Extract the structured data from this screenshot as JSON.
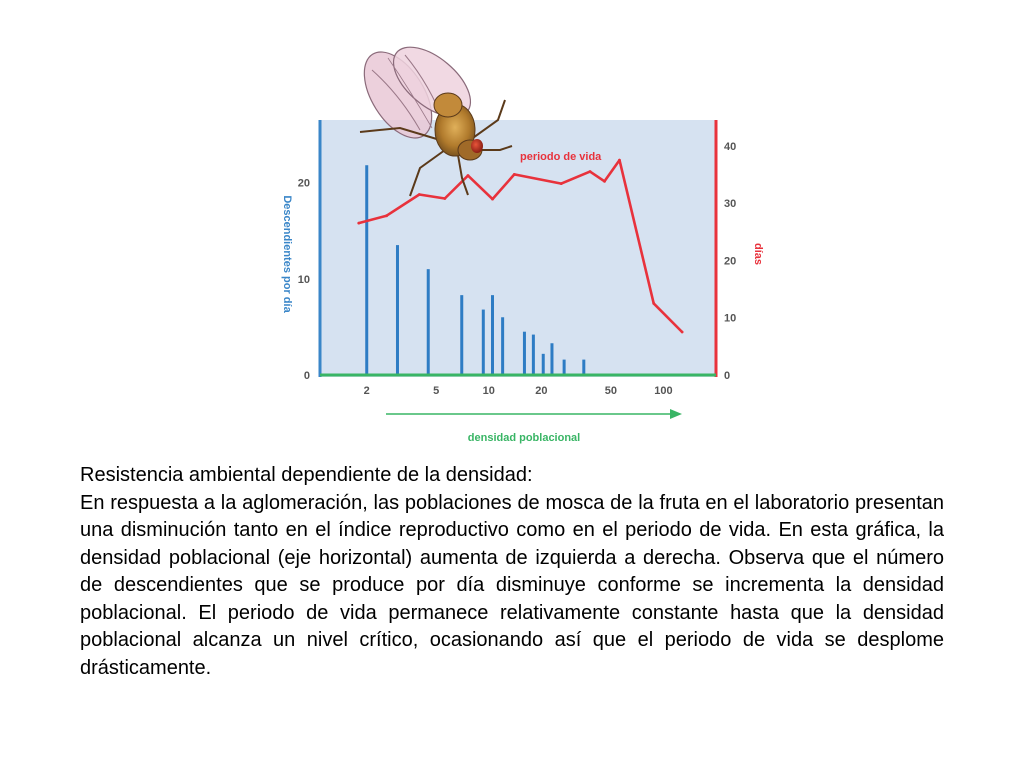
{
  "chart_data": {
    "type": "bar+line",
    "xlabel": "densidad poblacional",
    "x_ticks": [
      "2",
      "5",
      "10",
      "20",
      "50",
      "100"
    ],
    "x_scale": "log",
    "xlim": [
      1.2,
      180
    ],
    "left_axis": {
      "label": "Descendientes por día",
      "ticks": [
        "0",
        "10",
        "20"
      ],
      "ylim": [
        0,
        26.5
      ],
      "color": "#3a86c8"
    },
    "right_axis": {
      "label": "días",
      "ticks": [
        "0",
        "10",
        "20",
        "30",
        "40"
      ],
      "ylim": [
        0,
        44.5
      ],
      "color": "#e8323c"
    },
    "series": [
      {
        "name": "descendientes por día",
        "type": "bar",
        "axis": "left",
        "color": "#2e7cc4",
        "points": [
          {
            "x": 2,
            "y": 21.8
          },
          {
            "x": 3,
            "y": 13.5
          },
          {
            "x": 4.5,
            "y": 11.0
          },
          {
            "x": 7,
            "y": 8.3
          },
          {
            "x": 9.3,
            "y": 6.8
          },
          {
            "x": 10.5,
            "y": 8.3
          },
          {
            "x": 12,
            "y": 6.0
          },
          {
            "x": 16,
            "y": 4.5
          },
          {
            "x": 18,
            "y": 4.2
          },
          {
            "x": 20.5,
            "y": 2.2
          },
          {
            "x": 23,
            "y": 3.3
          },
          {
            "x": 27,
            "y": 1.6
          },
          {
            "x": 35,
            "y": 1.6
          }
        ]
      },
      {
        "name": "periodo de vida",
        "type": "line",
        "axis": "right",
        "color": "#e8323c",
        "points": [
          {
            "x": 1.8,
            "y": 26.5
          },
          {
            "x": 2.6,
            "y": 27.8
          },
          {
            "x": 4,
            "y": 31.5
          },
          {
            "x": 5.6,
            "y": 30.8
          },
          {
            "x": 7.6,
            "y": 34.8
          },
          {
            "x": 10.5,
            "y": 30.7
          },
          {
            "x": 14,
            "y": 35.0
          },
          {
            "x": 26,
            "y": 33.4
          },
          {
            "x": 38,
            "y": 35.5
          },
          {
            "x": 46,
            "y": 33.8
          },
          {
            "x": 56,
            "y": 37.5
          },
          {
            "x": 88,
            "y": 12.5
          },
          {
            "x": 128,
            "y": 7.5
          }
        ]
      }
    ],
    "grid": false,
    "background": "#d6e2f1",
    "baseline_color": "#39b565",
    "arrow_color": "#39b565"
  },
  "caption": {
    "title": "Resistencia ambiental dependiente de la densidad:",
    "body": "En respuesta a la aglomeración, las poblaciones de mosca de la fruta en el laboratorio presentan una disminución tanto en el índice reproductivo como en el periodo de vida. En esta gráfica, la densidad poblacional (eje horizontal) aumenta de izquierda a derecha. Observa que el número de descendientes que se produce por día disminuye conforme se incrementa la densidad poblacional. El periodo de vida permanece relativamente constante hasta que la densidad poblacional alcanza un nivel crítico, ocasionando así que el periodo de vida se desplome drásticamente."
  },
  "illustration": {
    "icon": "fruit-fly-icon"
  }
}
